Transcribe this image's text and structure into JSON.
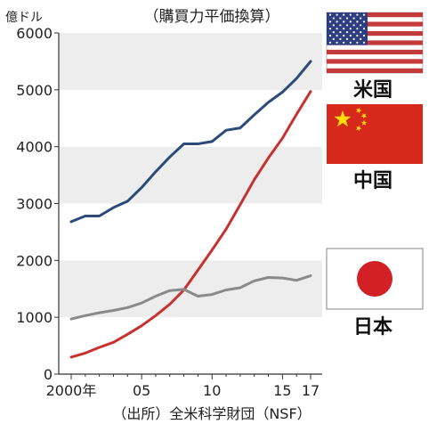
{
  "chart_data": {
    "type": "line",
    "title": "（購買力平価換算）",
    "ylabel": "億ドル",
    "source": "（出所）全米科学財団（NSF）",
    "ylim": [
      0,
      6000
    ],
    "xlim": [
      2000,
      2017
    ],
    "yticks": [
      0,
      1000,
      2000,
      3000,
      4000,
      5000,
      6000
    ],
    "ytick_labels": [
      "0",
      "1000",
      "2000",
      "3000",
      "4000",
      "5000",
      "6000"
    ],
    "xticks": [
      2000,
      2005,
      2010,
      2015,
      2017
    ],
    "xtick_labels": [
      "2000年",
      "05",
      "10",
      "15",
      "17"
    ],
    "grid": "horizontal bands",
    "series": [
      {
        "name": "米国",
        "color": "#2c4b78",
        "x": [
          2000,
          2001,
          2002,
          2003,
          2004,
          2005,
          2006,
          2007,
          2008,
          2009,
          2010,
          2011,
          2012,
          2013,
          2014,
          2015,
          2016,
          2017
        ],
        "values": [
          2680,
          2780,
          2780,
          2930,
          3040,
          3280,
          3560,
          3820,
          4050,
          4050,
          4090,
          4290,
          4330,
          4560,
          4780,
          4960,
          5200,
          5500
        ]
      },
      {
        "name": "中国",
        "color": "#c8312f",
        "x": [
          2000,
          2001,
          2002,
          2003,
          2004,
          2005,
          2006,
          2007,
          2008,
          2009,
          2010,
          2011,
          2012,
          2013,
          2014,
          2015,
          2016,
          2017
        ],
        "values": [
          300,
          370,
          470,
          560,
          700,
          850,
          1030,
          1230,
          1480,
          1830,
          2180,
          2550,
          2980,
          3420,
          3800,
          4150,
          4570,
          4970
        ]
      },
      {
        "name": "日本",
        "color": "#8a8a8a",
        "x": [
          2000,
          2001,
          2002,
          2003,
          2004,
          2005,
          2006,
          2007,
          2008,
          2009,
          2010,
          2011,
          2012,
          2013,
          2014,
          2015,
          2016,
          2017
        ],
        "values": [
          970,
          1030,
          1080,
          1120,
          1170,
          1250,
          1370,
          1470,
          1490,
          1370,
          1400,
          1480,
          1520,
          1640,
          1700,
          1690,
          1650,
          1730
        ]
      }
    ],
    "legend": [
      {
        "label": "米国",
        "flag": "us-flag"
      },
      {
        "label": "中国",
        "flag": "china-flag"
      },
      {
        "label": "日本",
        "flag": "japan-flag"
      }
    ]
  }
}
